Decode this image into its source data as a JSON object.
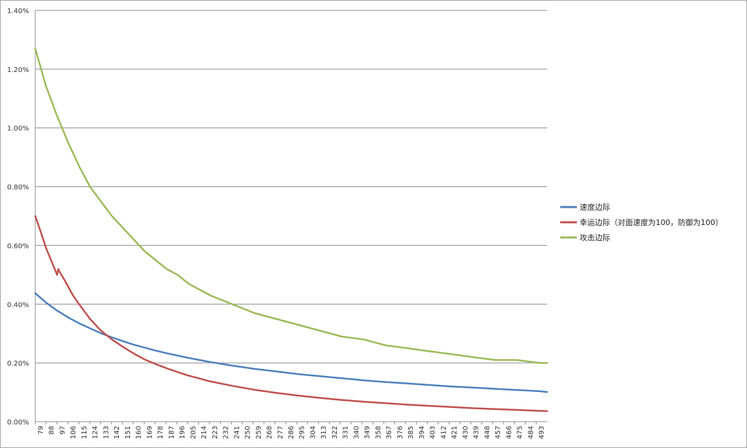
{
  "chart_data": {
    "type": "line",
    "title": "",
    "xlabel": "",
    "ylabel": "",
    "ylim": [
      0,
      0.014
    ],
    "xlim": [
      79,
      500
    ],
    "y_tick_labels": [
      "0.00%",
      "0.20%",
      "0.40%",
      "0.60%",
      "0.80%",
      "1.00%",
      "1.20%",
      "1.40%"
    ],
    "x_tick_labels": [
      "79",
      "88",
      "97",
      "106",
      "115",
      "124",
      "133",
      "142",
      "151",
      "160",
      "169",
      "178",
      "187",
      "196",
      "205",
      "214",
      "223",
      "232",
      "241",
      "250",
      "259",
      "268",
      "277",
      "286",
      "295",
      "304",
      "313",
      "322",
      "331",
      "340",
      "349",
      "358",
      "367",
      "376",
      "385",
      "394",
      "403",
      "412",
      "421",
      "430",
      "439",
      "448",
      "457",
      "466",
      "475",
      "484",
      "493"
    ],
    "grid": true,
    "legend_position": "right",
    "series": [
      {
        "name": "速度边际",
        "color": "#4f81bd",
        "x": [
          79,
          88,
          97,
          106,
          115,
          124,
          133,
          142,
          151,
          160,
          169,
          178,
          187,
          196,
          205,
          214,
          223,
          241,
          259,
          277,
          295,
          313,
          331,
          349,
          367,
          385,
          403,
          421,
          439,
          457,
          475,
          493,
          500
        ],
        "values": [
          0.00437,
          0.00405,
          0.00378,
          0.00355,
          0.00335,
          0.00318,
          0.00301,
          0.00287,
          0.00274,
          0.00262,
          0.00252,
          0.00242,
          0.00233,
          0.00225,
          0.00217,
          0.0021,
          0.00203,
          0.00191,
          0.0018,
          0.00171,
          0.00162,
          0.00155,
          0.00148,
          0.00141,
          0.00135,
          0.0013,
          0.00125,
          0.0012,
          0.00116,
          0.00112,
          0.00108,
          0.00104,
          0.00101
        ]
      },
      {
        "name": "幸运边际（对面速度为100，防御为100）",
        "color": "#c0504d",
        "x": [
          79,
          84,
          88,
          93,
          97,
          98,
          99,
          102,
          106,
          110,
          115,
          124,
          133,
          142,
          151,
          160,
          169,
          178,
          187,
          196,
          205,
          214,
          223,
          241,
          259,
          277,
          295,
          313,
          331,
          349,
          367,
          385,
          403,
          421,
          439,
          457,
          475,
          493,
          500
        ],
        "values": [
          0.007,
          0.0064,
          0.0059,
          0.0054,
          0.005,
          0.0052,
          0.0051,
          0.0049,
          0.0046,
          0.0043,
          0.004,
          0.0035,
          0.0031,
          0.0028,
          0.00255,
          0.00232,
          0.00212,
          0.00196,
          0.00182,
          0.00169,
          0.00157,
          0.00147,
          0.00137,
          0.00122,
          0.00109,
          0.00098,
          0.00089,
          0.00081,
          0.00074,
          0.00068,
          0.00063,
          0.00058,
          0.00054,
          0.0005,
          0.00046,
          0.00043,
          0.0004,
          0.00037,
          0.00036
        ]
      },
      {
        "name": "攻击边际",
        "color": "#9bbb59",
        "x": [
          79,
          88,
          97,
          106,
          115,
          124,
          133,
          142,
          151,
          160,
          169,
          178,
          187,
          196,
          205,
          214,
          223,
          241,
          259,
          277,
          295,
          313,
          331,
          349,
          367,
          385,
          403,
          421,
          439,
          457,
          475,
          493,
          500
        ],
        "values": [
          0.0127,
          0.0114,
          0.0104,
          0.0095,
          0.0087,
          0.008,
          0.0075,
          0.007,
          0.0066,
          0.0062,
          0.0058,
          0.0055,
          0.0052,
          0.005,
          0.0047,
          0.0045,
          0.0043,
          0.004,
          0.0037,
          0.0035,
          0.0033,
          0.0031,
          0.0029,
          0.0028,
          0.0026,
          0.0025,
          0.0024,
          0.0023,
          0.0022,
          0.0021,
          0.0021,
          0.002,
          0.002
        ]
      }
    ]
  }
}
